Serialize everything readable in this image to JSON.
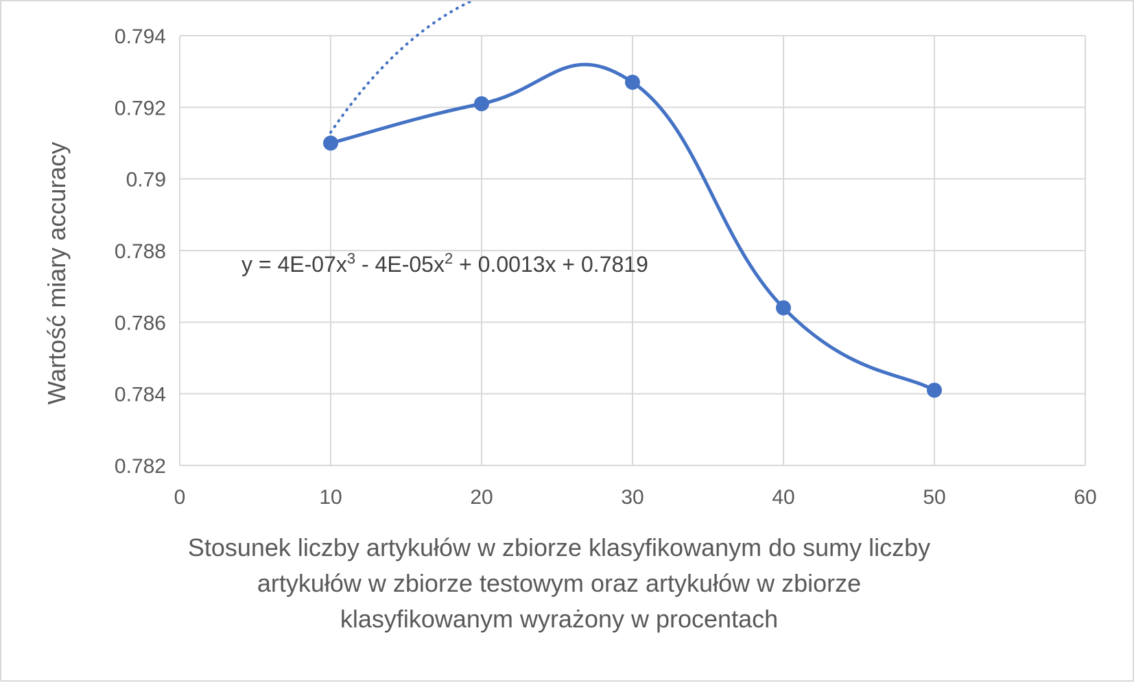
{
  "chart_data": {
    "type": "scatter",
    "title": "",
    "xlabel_lines": [
      "Stosunek liczby artykułów w zbiorze klasyfikowanym do sumy liczby",
      "artykułów w zbiorze testowym oraz artykułów w zbiorze",
      "klasyfikowanym wyrażony w procentach"
    ],
    "ylabel": "Wartość miary accuracy",
    "xlim": [
      0,
      60
    ],
    "ylim": [
      0.782,
      0.794
    ],
    "x_ticks": [
      "0",
      "10",
      "20",
      "30",
      "40",
      "50",
      "60"
    ],
    "y_ticks": [
      "0.782",
      "0.784",
      "0.786",
      "0.788",
      "0.79",
      "0.792",
      "0.794"
    ],
    "grid": true,
    "series": [
      {
        "x": [
          10,
          20,
          30,
          40,
          50
        ],
        "y": [
          0.791,
          0.7921,
          0.7927,
          0.7864,
          0.7841
        ],
        "line": "smooth",
        "markers": true,
        "color": "#4472C4"
      }
    ],
    "trendline": {
      "type": "polynomial",
      "order": 3,
      "style": "dotted",
      "color": "#4472C4",
      "x_range": [
        10,
        50
      ],
      "coefficients": {
        "a": 4e-07,
        "b": -4e-05,
        "c": 0.0013,
        "d": 0.7819
      },
      "equation": {
        "p1": "y = 4E-07x",
        "sup1": "3",
        "p2": " - 4E-05x",
        "sup2": "2",
        "p3": " + 0.0013x + 0.7819"
      }
    }
  }
}
